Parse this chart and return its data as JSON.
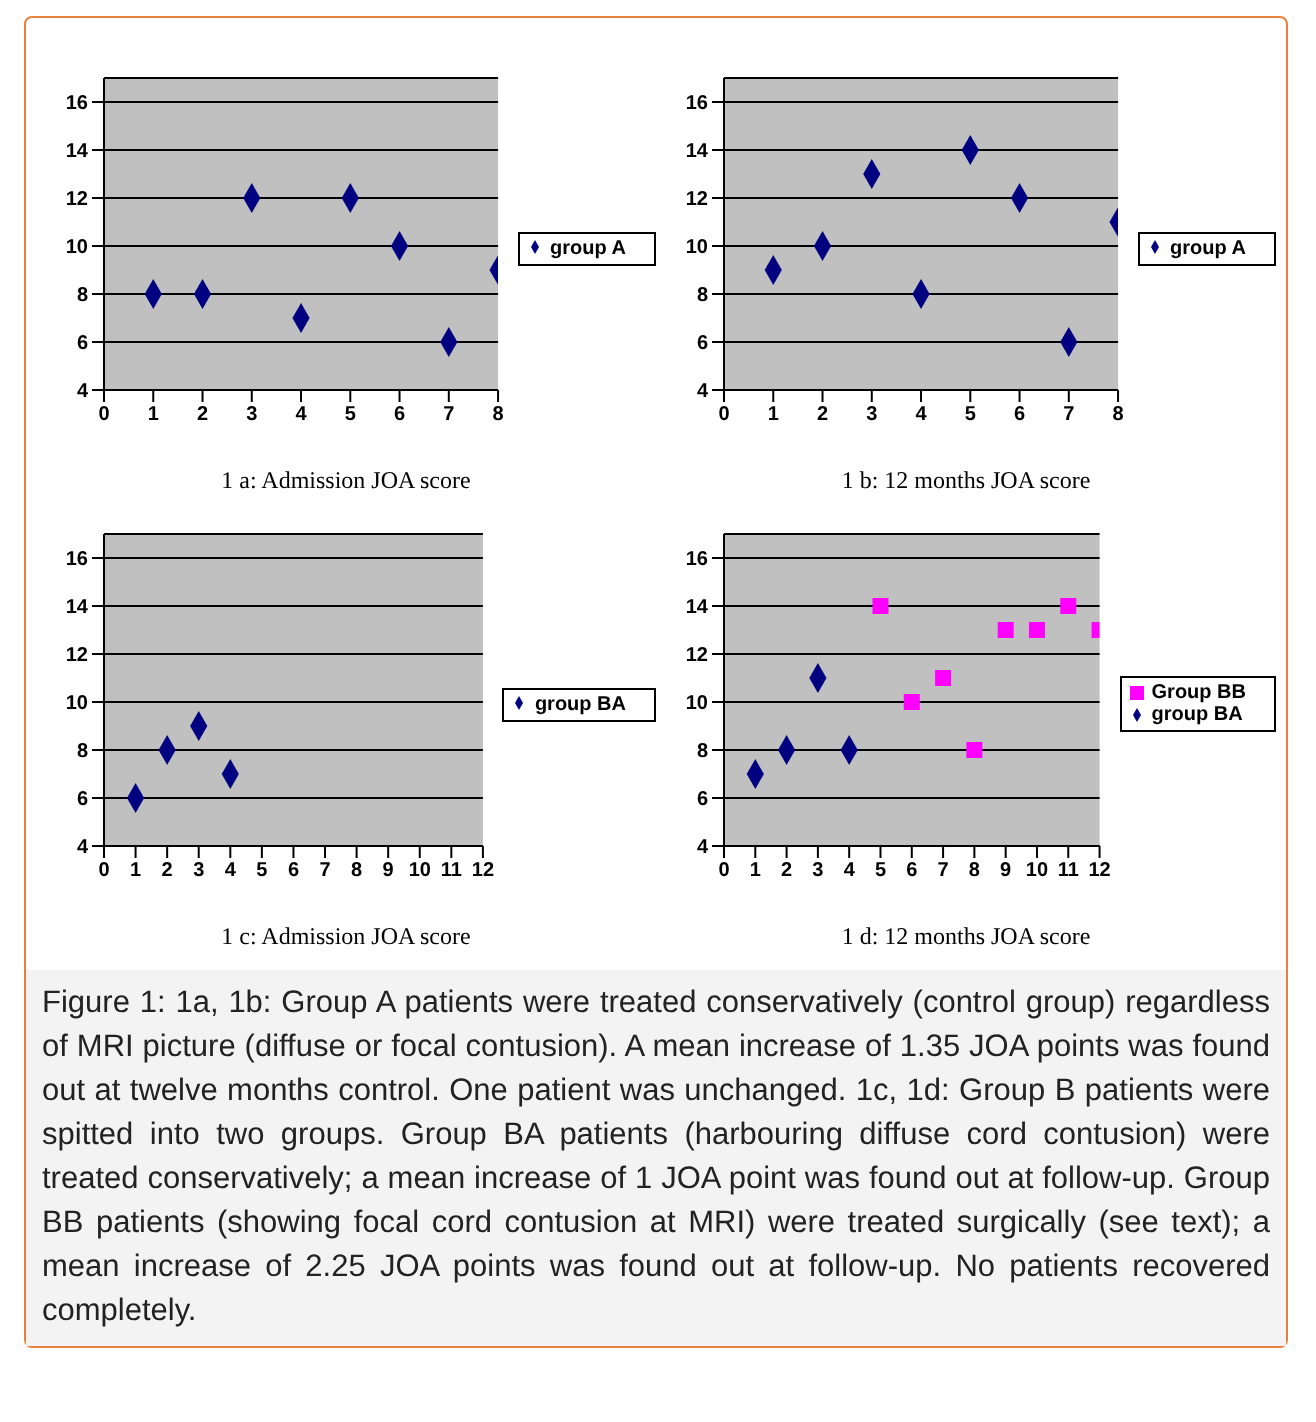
{
  "chart_data": [
    {
      "type": "scatter",
      "title": "1 a: Admission JOA score",
      "x": [
        1,
        2,
        3,
        4,
        5,
        6,
        7,
        8
      ],
      "series": [
        {
          "name": "group A",
          "color": "#000080",
          "marker": "diamond",
          "values": [
            8,
            8,
            12,
            7,
            12,
            10,
            6,
            9
          ]
        }
      ],
      "xlim": [
        0,
        8
      ],
      "xticks": [
        0,
        1,
        2,
        3,
        4,
        5,
        6,
        7,
        8
      ],
      "ylim": [
        4,
        17
      ],
      "yticks": [
        4,
        6,
        8,
        10,
        12,
        14,
        16
      ],
      "grid": "y",
      "legend": "right"
    },
    {
      "type": "scatter",
      "title": "1 b: 12 months JOA score",
      "x": [
        1,
        2,
        3,
        4,
        5,
        6,
        7,
        8
      ],
      "series": [
        {
          "name": "group A",
          "color": "#000080",
          "marker": "diamond",
          "values": [
            9,
            10,
            13,
            8,
            14,
            12,
            6,
            11
          ]
        }
      ],
      "xlim": [
        0,
        8
      ],
      "xticks": [
        0,
        1,
        2,
        3,
        4,
        5,
        6,
        7,
        8
      ],
      "ylim": [
        4,
        17
      ],
      "yticks": [
        4,
        6,
        8,
        10,
        12,
        14,
        16
      ],
      "grid": "y",
      "legend": "right"
    },
    {
      "type": "scatter",
      "title": "1 c: Admission JOA score",
      "x": [
        1,
        2,
        3,
        4
      ],
      "series": [
        {
          "name": "group BA",
          "color": "#000080",
          "marker": "diamond",
          "values": [
            6,
            8,
            9,
            7
          ]
        }
      ],
      "xlim": [
        0,
        12
      ],
      "xticks": [
        0,
        1,
        2,
        3,
        4,
        5,
        6,
        7,
        8,
        9,
        10,
        11,
        12
      ],
      "ylim": [
        4,
        17
      ],
      "yticks": [
        4,
        6,
        8,
        10,
        12,
        14,
        16
      ],
      "grid": "y",
      "legend": "right"
    },
    {
      "type": "scatter",
      "title": "1 d: 12 months JOA score",
      "series": [
        {
          "name": "group BA",
          "color": "#000080",
          "marker": "diamond",
          "x": [
            1,
            2,
            3,
            4
          ],
          "values": [
            7,
            8,
            11,
            8
          ]
        },
        {
          "name": "Group BB",
          "color": "#ff00ff",
          "marker": "square",
          "x": [
            5,
            6,
            7,
            8,
            9,
            10,
            11,
            12
          ],
          "values": [
            14,
            10,
            11,
            8,
            13,
            13,
            14,
            13
          ]
        }
      ],
      "xlim": [
        0,
        12
      ],
      "xticks": [
        0,
        1,
        2,
        3,
        4,
        5,
        6,
        7,
        8,
        9,
        10,
        11,
        12
      ],
      "ylim": [
        4,
        17
      ],
      "yticks": [
        4,
        6,
        8,
        10,
        12,
        14,
        16
      ],
      "grid": "y",
      "legend": "right",
      "annotations": [
        "Figure 1: 1a, 1b: Group A patients were treated conservatively (control group) regardless of MRI picture (diffuse or focal contusion). A mean increase of 1.35 JOA points was found out at twelve months control. One patient was unchanged. 1c, 1d: Group B patients were spitted into two groups. Group BA patients (harbouring diffuse cord contusion) were treated conservatively; a mean increase of 1 JOA point was found out at follow-up. Group BB patients (showing focal cord contusion at MRI) were treated surgically (see text); a mean increase of 2.25 JOA points was found out at follow-up. No patients recovered completely."
      ]
    }
  ]
}
